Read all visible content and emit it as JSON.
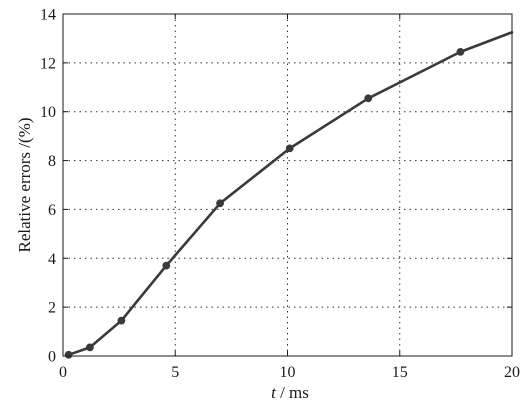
{
  "chart_data": {
    "type": "line",
    "title": "",
    "xlabel_italic": "t",
    "xlabel_rest": " / ms",
    "ylabel": "Relative errors /(%)",
    "xlim": [
      0,
      20
    ],
    "ylim": [
      0,
      14
    ],
    "x_ticks": [
      0,
      5,
      10,
      15,
      20
    ],
    "y_ticks": [
      0,
      2,
      4,
      6,
      8,
      10,
      12,
      14
    ],
    "grid": true,
    "series": [
      {
        "color": "#3a3a3a",
        "marker": "circle",
        "x": [
          0.25,
          1.2,
          2.6,
          4.6,
          7.0,
          10.1,
          13.6,
          17.7,
          20.0
        ],
        "y": [
          0.05,
          0.35,
          1.45,
          3.7,
          6.25,
          8.5,
          10.55,
          12.45,
          13.25
        ],
        "markers_on": [
          true,
          true,
          true,
          true,
          true,
          true,
          true,
          true,
          false
        ]
      }
    ]
  }
}
